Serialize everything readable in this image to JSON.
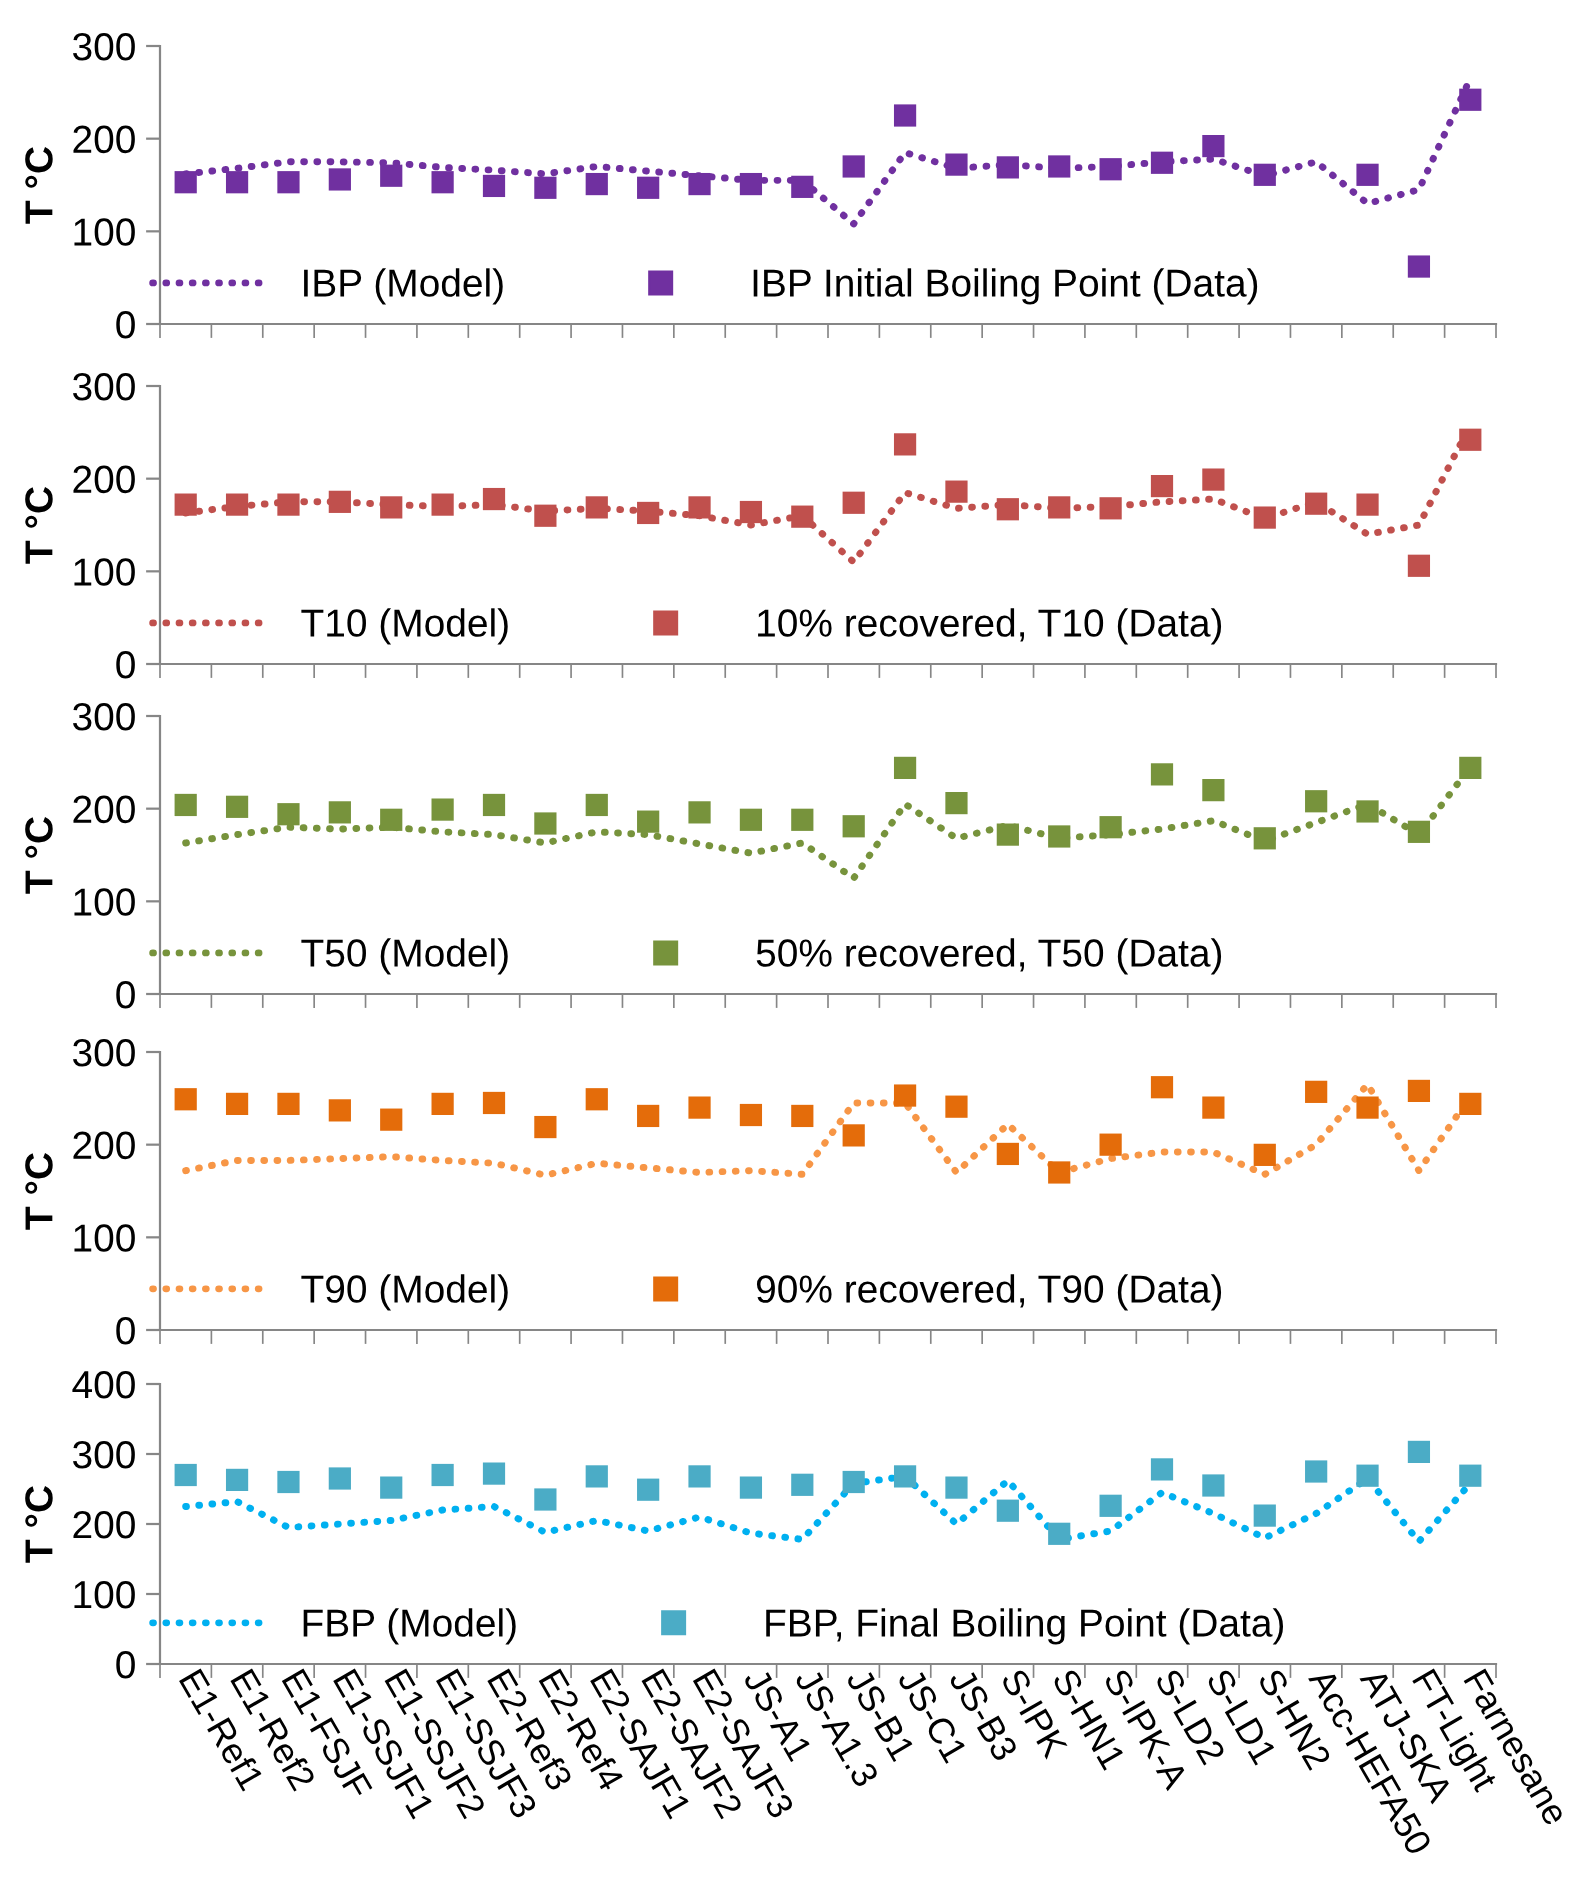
{
  "chart_data": [
    {
      "type": "line",
      "ylabel": "T °C",
      "categories": [
        null,
        null,
        null,
        null,
        null,
        null,
        null,
        null,
        null,
        null,
        null,
        null,
        null,
        null,
        null,
        null,
        null,
        null,
        null,
        null,
        null,
        null,
        null,
        null,
        null,
        null
      ],
      "ylim": [
        0,
        300
      ],
      "yticks": [
        0,
        100,
        200,
        300
      ],
      "grid": false,
      "legend": "bottom left",
      "tick_labels": "y",
      "series": [
        {
          "name": "IBP (Model)",
          "color": "#7030a0",
          "line_style": "dotted",
          "marker": "none",
          "values": [
            162,
            168,
            175,
            175,
            174,
            169,
            166,
            162,
            170,
            165,
            160,
            155,
            155,
            108,
            185,
            168,
            172,
            168,
            170,
            175,
            178,
            160,
            175,
            130,
            145,
            265
          ]
        },
        {
          "name": "IBP Initial Boiling Point (Data)",
          "type": "scatter",
          "color": "#7030a0",
          "marker": "square",
          "values": [
            153,
            153,
            153,
            156,
            160,
            153,
            149,
            147,
            151,
            147,
            151,
            151,
            148,
            170,
            225,
            172,
            169,
            170,
            167,
            174,
            192,
            161,
            null,
            161,
            62,
            242
          ]
        }
      ]
    },
    {
      "type": "line",
      "ylabel": "T °C",
      "categories": [
        null,
        null,
        null,
        null,
        null,
        null,
        null,
        null,
        null,
        null,
        null,
        null,
        null,
        null,
        null,
        null,
        null,
        null,
        null,
        null,
        null,
        null,
        null,
        null,
        null,
        null
      ],
      "ylim": [
        0,
        300
      ],
      "yticks": [
        0,
        100,
        200,
        300
      ],
      "grid": false,
      "legend": "bottom left",
      "tick_labels": "y",
      "series": [
        {
          "name": "T10 (Model)",
          "color": "#c0504d",
          "line_style": "dotted",
          "marker": "none",
          "values": [
            163,
            170,
            175,
            175,
            172,
            170,
            172,
            165,
            168,
            165,
            160,
            150,
            160,
            110,
            185,
            168,
            172,
            168,
            170,
            175,
            178,
            157,
            175,
            140,
            150,
            258
          ]
        },
        {
          "name": "10% recovered, T10 (Data)",
          "type": "scatter",
          "color": "#c0504d",
          "marker": "square",
          "values": [
            172,
            172,
            172,
            175,
            169,
            172,
            178,
            160,
            169,
            163,
            169,
            164,
            159,
            174,
            237,
            186,
            167,
            169,
            168,
            192,
            199,
            158,
            173,
            172,
            106,
            242
          ]
        }
      ]
    },
    {
      "type": "line",
      "ylabel": "T °C",
      "categories": [
        null,
        null,
        null,
        null,
        null,
        null,
        null,
        null,
        null,
        null,
        null,
        null,
        null,
        null,
        null,
        null,
        null,
        null,
        null,
        null,
        null,
        null,
        null,
        null,
        null,
        null
      ],
      "ylim": [
        0,
        300
      ],
      "yticks": [
        0,
        100,
        200,
        300
      ],
      "grid": false,
      "legend": "bottom left",
      "tick_labels": "y",
      "series": [
        {
          "name": "T50 (Model)",
          "color": "#77933c",
          "line_style": "dotted",
          "marker": "none",
          "values": [
            163,
            172,
            180,
            178,
            180,
            175,
            172,
            163,
            175,
            172,
            162,
            152,
            163,
            125,
            205,
            168,
            182,
            168,
            172,
            178,
            187,
            165,
            185,
            205,
            172,
            245
          ]
        },
        {
          "name": "50% recovered, T50 (Data)",
          "type": "scatter",
          "color": "#77933c",
          "marker": "square",
          "values": [
            204,
            202,
            194,
            196,
            188,
            199,
            204,
            184,
            204,
            186,
            196,
            188,
            188,
            181,
            244,
            206,
            172,
            170,
            180,
            237,
            220,
            168,
            208,
            197,
            175,
            244
          ]
        }
      ]
    },
    {
      "type": "line",
      "ylabel": "T °C",
      "categories": [
        null,
        null,
        null,
        null,
        null,
        null,
        null,
        null,
        null,
        null,
        null,
        null,
        null,
        null,
        null,
        null,
        null,
        null,
        null,
        null,
        null,
        null,
        null,
        null,
        null,
        null
      ],
      "ylim": [
        0,
        300
      ],
      "yticks": [
        0,
        100,
        200,
        300
      ],
      "grid": false,
      "legend": "bottom left",
      "tick_labels": "y",
      "series": [
        {
          "name": "T90 (Model)",
          "color": "#f79646",
          "line_style": "dotted",
          "marker": "none",
          "values": [
            172,
            183,
            183,
            185,
            187,
            183,
            180,
            167,
            180,
            175,
            170,
            172,
            168,
            245,
            245,
            170,
            222,
            170,
            185,
            192,
            192,
            168,
            200,
            265,
            172,
            252
          ]
        },
        {
          "name": "90% recovered, T90 (Data)",
          "type": "scatter",
          "color": "#e46c0a",
          "marker": "square",
          "values": [
            249,
            244,
            244,
            237,
            227,
            244,
            245,
            219,
            249,
            231,
            240,
            232,
            231,
            210,
            253,
            241,
            190,
            170,
            200,
            262,
            240,
            189,
            257,
            240,
            258,
            244
          ]
        }
      ]
    },
    {
      "type": "line",
      "ylabel": "T °C",
      "categories": [
        "E1-Ref1",
        "E1-Ref2",
        "E1-FSJF",
        "E1-SSJF1",
        "E1-SSJF2",
        "E1-SSJF3",
        "E2-Ref3",
        "E2-Ref4",
        "E2-SAJF1",
        "E2-SAJF2",
        "E2-SAJF3",
        "JS-A1",
        "JS-A1.3",
        "JS-B1",
        "JS-C1",
        "JS-B3",
        "S-IPK",
        "S-HN1",
        "S-IPK-A",
        "S-LD2",
        "S-LD1",
        "S-HN2",
        "Acc-HEFA50",
        "ATJ-SKA",
        "FT-Light",
        "Farnesane"
      ],
      "ylim": [
        0,
        400
      ],
      "yticks": [
        0,
        100,
        200,
        300,
        400
      ],
      "grid": false,
      "legend": "bottom left",
      "series": [
        {
          "name": "FBP (Model)",
          "color": "#00b0f0",
          "line_style": "dotted",
          "marker": "none",
          "values": [
            225,
            232,
            195,
            200,
            205,
            220,
            225,
            188,
            205,
            190,
            210,
            187,
            178,
            258,
            268,
            200,
            262,
            178,
            190,
            245,
            215,
            180,
            215,
            265,
            175,
            258
          ]
        },
        {
          "name": "FBP, Final Boiling Point (Data)",
          "type": "scatter",
          "color": "#4bacc6",
          "marker": "square",
          "values": [
            270,
            263,
            260,
            265,
            252,
            270,
            272,
            235,
            268,
            249,
            268,
            252,
            256,
            260,
            268,
            252,
            219,
            186,
            226,
            278,
            255,
            212,
            275,
            269,
            303,
            269
          ]
        }
      ]
    }
  ]
}
